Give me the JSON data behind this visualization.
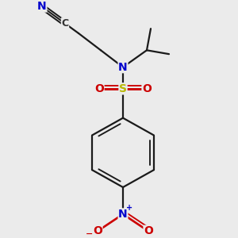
{
  "background_color": "#ebebeb",
  "colors": {
    "bond": "#1a1a1a",
    "N": "#0000cc",
    "S": "#b8b800",
    "O": "#cc0000",
    "C_dark": "#333333"
  },
  "lw": 1.6,
  "figsize": [
    3.0,
    3.0
  ],
  "dpi": 100
}
